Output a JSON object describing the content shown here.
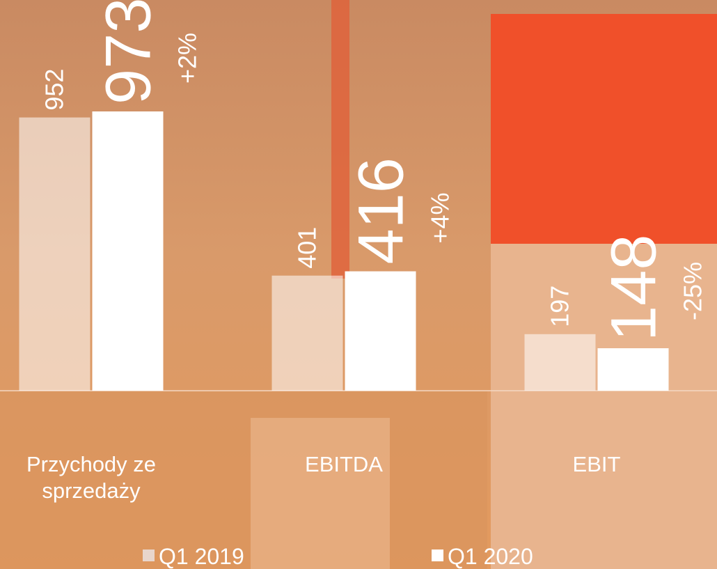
{
  "chart_data": {
    "type": "bar",
    "categories": [
      "Przychody ze sprzedaży",
      "EBITDA",
      "EBIT"
    ],
    "series": [
      {
        "name": "Q1 2019",
        "color": "rgba(255,255,255,0.55)",
        "values": [
          952,
          401,
          197
        ]
      },
      {
        "name": "Q1 2020",
        "color": "#ffffff",
        "values": [
          973,
          416,
          148
        ]
      }
    ],
    "annotations": [
      "+2%",
      "+4%",
      "-25%"
    ]
  }
}
